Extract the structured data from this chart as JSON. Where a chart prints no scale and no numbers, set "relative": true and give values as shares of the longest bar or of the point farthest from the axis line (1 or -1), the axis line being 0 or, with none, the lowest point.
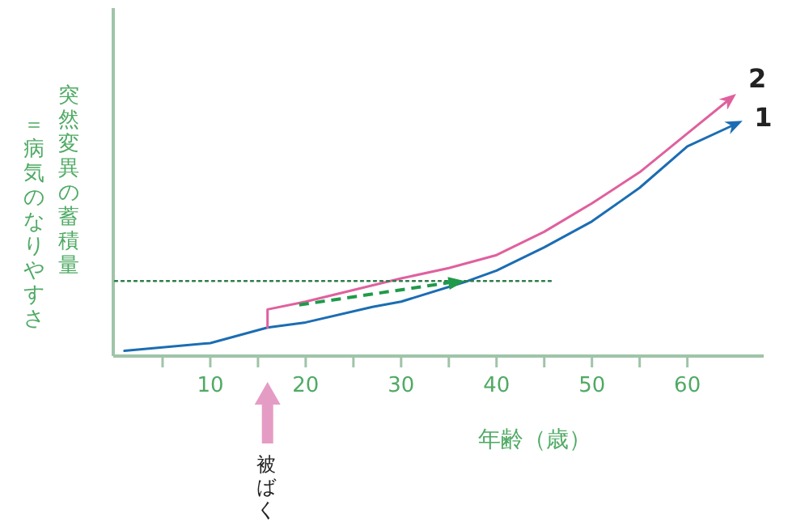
{
  "chart_data": {
    "type": "line",
    "relative": true,
    "xlabel": "年齢（歳）",
    "ylabel": "突然変異の蓄積量＝病気のなりやすさ",
    "xlim": [
      0,
      68
    ],
    "xticks": [
      {
        "value": 5,
        "label": null
      },
      10,
      {
        "value": 15,
        "label": null
      },
      20,
      {
        "value": 25,
        "label": null
      },
      30,
      {
        "value": 35,
        "label": null
      },
      40,
      {
        "value": 45,
        "label": null
      },
      50,
      {
        "value": 55,
        "label": null
      },
      60
    ],
    "legend": "right",
    "annotations": [
      "被ばく"
    ],
    "series": [
      {
        "name": "1",
        "color": "#1b6db3",
        "x": [
          1,
          10,
          16,
          20,
          27,
          30,
          37,
          40,
          45,
          50,
          55,
          60,
          65.3
        ],
        "values": [
          0.02,
          0.05,
          0.11,
          0.13,
          0.19,
          0.21,
          0.29,
          0.33,
          0.42,
          0.52,
          0.65,
          0.81,
          0.9
        ]
      },
      {
        "name": "2",
        "color": "#e0609e",
        "x": [
          16,
          16,
          20,
          30,
          35,
          40,
          45,
          50,
          55,
          60,
          64.7
        ],
        "values": [
          0.11,
          0.18,
          0.21,
          0.3,
          0.34,
          0.39,
          0.48,
          0.59,
          0.71,
          0.86,
          1
        ]
      },
      {
        "color": "#2e7d4a",
        "line_style": "dotted",
        "x": [
          0,
          46
        ],
        "values": [
          0.29,
          0.29
        ]
      }
    ]
  }
}
